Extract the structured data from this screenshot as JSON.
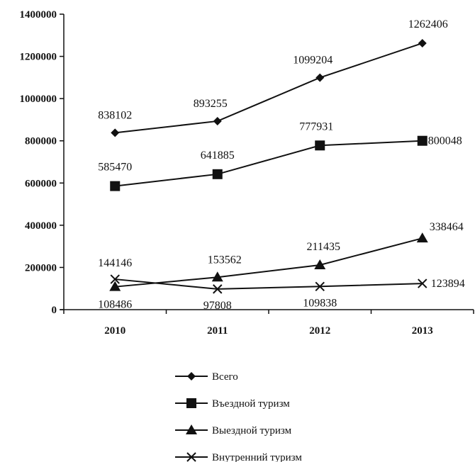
{
  "chart_data": {
    "type": "line",
    "categories": [
      "2010",
      "2011",
      "2012",
      "2013"
    ],
    "ylim": [
      0,
      1400000
    ],
    "yticks": [
      0,
      200000,
      400000,
      600000,
      800000,
      1000000,
      1200000,
      1400000
    ],
    "ytick_labels": [
      "0",
      "200000",
      "400000",
      "600000",
      "800000",
      "1000000",
      "1200000",
      "1400000"
    ],
    "grid": false,
    "legend_position": "bottom",
    "colors": {
      "line": "#111111",
      "axis": "#111111"
    },
    "series": [
      {
        "name": "Всего",
        "marker": "diamond",
        "values": [
          838102,
          893255,
          1099204,
          1262406
        ],
        "labels": [
          "838102",
          "893255",
          "1099204",
          "1262406"
        ]
      },
      {
        "name": "Въездной туризм",
        "marker": "square",
        "values": [
          585470,
          641885,
          777931,
          800048
        ],
        "labels": [
          "585470",
          "641885",
          "777931",
          "800048"
        ]
      },
      {
        "name": "Выездной туризм",
        "marker": "triangle",
        "values": [
          108486,
          153562,
          211435,
          338464
        ],
        "labels": [
          "108486",
          "153562",
          "211435",
          "338464"
        ]
      },
      {
        "name": "Внутренний туризм",
        "marker": "cross",
        "values": [
          144146,
          97808,
          109838,
          123894
        ],
        "labels": [
          "144146",
          "97808",
          "109838",
          "123894"
        ]
      }
    ]
  }
}
